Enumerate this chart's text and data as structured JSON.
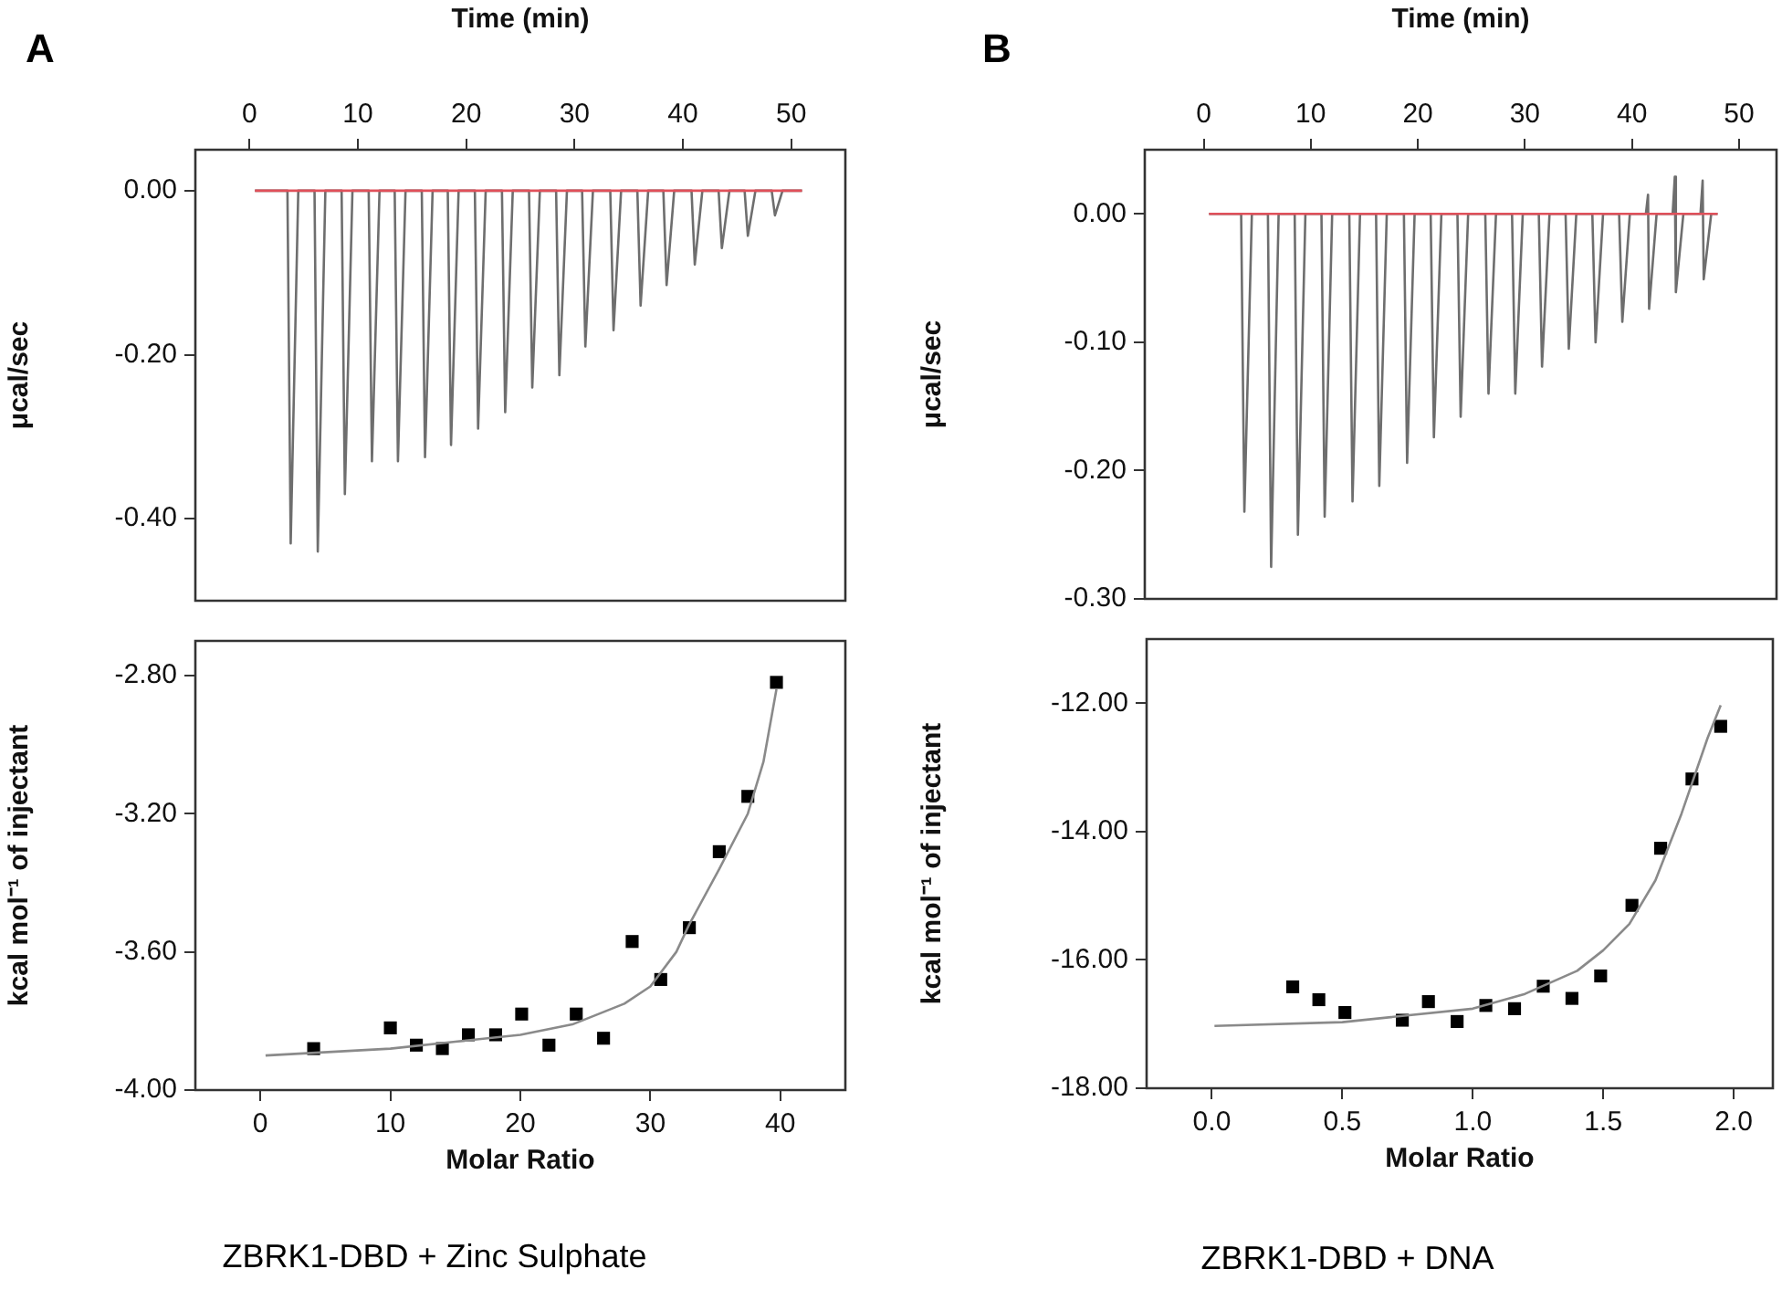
{
  "chart_data": [
    {
      "type": "line",
      "title": "A",
      "xlabel": "Time (min)",
      "ylabel": "μcal/sec",
      "xlim": [
        -5,
        55
      ],
      "xticks": [
        0,
        10,
        20,
        30,
        40,
        50
      ],
      "ylim": [
        -0.5,
        0.05
      ],
      "yticks": [
        {
          "value": 0,
          "label": "0.00"
        },
        {
          "value": -0.2,
          "label": "-0.20"
        },
        {
          "value": -0.4,
          "label": "-0.40"
        }
      ],
      "grid": false,
      "legend": false,
      "marker": "none",
      "series": [
        {
          "color": "#6e6e6e",
          "x": [
            0.5,
            3.5,
            3.8,
            4.5,
            6.0,
            6.3,
            7.0,
            8.5,
            8.8,
            9.5,
            11.0,
            11.3,
            12.0,
            13.4,
            13.7,
            14.4,
            15.9,
            16.2,
            16.9,
            18.3,
            18.6,
            19.3,
            20.8,
            21.1,
            21.8,
            23.3,
            23.6,
            24.3,
            25.8,
            26.1,
            26.8,
            28.3,
            28.6,
            29.3,
            30.7,
            31.0,
            31.7,
            33.3,
            33.6,
            34.3,
            35.8,
            36.1,
            36.8,
            38.2,
            38.5,
            39.2,
            40.8,
            41.1,
            41.8,
            43.3,
            43.6,
            44.3,
            45.7,
            46.0,
            46.7,
            48.2,
            48.5,
            49.2,
            51
          ],
          "values": [
            0,
            0,
            -0.43,
            0,
            0,
            -0.44,
            0,
            0,
            -0.37,
            0,
            0,
            -0.33,
            0,
            0,
            -0.33,
            0,
            0,
            -0.325,
            0,
            0,
            -0.31,
            0,
            0,
            -0.29,
            0,
            0,
            -0.27,
            0,
            0,
            -0.24,
            0,
            0,
            -0.225,
            0,
            0,
            -0.19,
            0,
            0,
            -0.17,
            0,
            0,
            -0.14,
            0,
            0,
            -0.115,
            0,
            0,
            -0.09,
            0,
            0,
            -0.07,
            0,
            0,
            -0.055,
            0,
            0,
            -0.03,
            0,
            0
          ]
        },
        {
          "color": "#e0505a",
          "x": [
            0.5,
            51
          ],
          "values": [
            0,
            0
          ]
        }
      ]
    },
    {
      "type": "scatter",
      "xlabel": "Molar Ratio",
      "ylabel": "kcal mol⁻¹ of injectant",
      "xlim": [
        -5,
        45
      ],
      "xticks": [
        0,
        10,
        20,
        30,
        40
      ],
      "ylim": [
        -4.0,
        -2.7
      ],
      "yticks": [
        {
          "value": -2.8,
          "label": "-2.80"
        },
        {
          "value": -3.2,
          "label": "-3.20"
        },
        {
          "value": -3.6,
          "label": "-3.60"
        },
        {
          "value": -4.0,
          "label": "-4.00"
        }
      ],
      "grid": false,
      "legend": false,
      "marker": "square",
      "annotations": [
        "ZBRK1-DBD + Zinc Sulphate"
      ],
      "series": [
        {
          "color": "#000000",
          "x": [
            4.1,
            10.0,
            12.0,
            14.0,
            16.0,
            18.1,
            20.1,
            22.2,
            24.3,
            26.4,
            28.6,
            30.8,
            33.0,
            35.3,
            37.5,
            39.7
          ],
          "values": [
            -3.88,
            -3.82,
            -3.87,
            -3.88,
            -3.84,
            -3.84,
            -3.78,
            -3.87,
            -3.78,
            -3.85,
            -3.57,
            -3.68,
            -3.53,
            -3.31,
            -3.15,
            -2.82
          ]
        },
        {
          "type": "line",
          "marker": "none",
          "color": "#8a8a8a",
          "x": [
            0.4,
            10,
            15,
            20,
            24,
            28,
            30,
            32,
            33,
            35.3,
            37.5,
            38.7,
            39.7
          ],
          "values": [
            -3.9,
            -3.88,
            -3.86,
            -3.84,
            -3.81,
            -3.75,
            -3.7,
            -3.6,
            -3.52,
            -3.36,
            -3.2,
            -3.05,
            -2.84
          ]
        }
      ]
    },
    {
      "type": "line",
      "title": "B",
      "xlabel": "Time (min)",
      "ylabel": "μcal/sec",
      "xlim": [
        -5.5,
        53.5
      ],
      "xticks": [
        0,
        10,
        20,
        30,
        40,
        50
      ],
      "ylim": [
        -0.3,
        0.05
      ],
      "yticks": [
        {
          "value": 0,
          "label": "0.00"
        },
        {
          "value": -0.1,
          "label": "-0.10"
        },
        {
          "value": -0.2,
          "label": "-0.20"
        },
        {
          "value": -0.3,
          "label": "-0.30"
        }
      ],
      "grid": false,
      "legend": false,
      "marker": "none",
      "series": [
        {
          "color": "#6e6e6e",
          "x": [
            0.5,
            3.5,
            3.8,
            4.5,
            6.0,
            6.3,
            7.0,
            8.5,
            8.8,
            9.5,
            11.0,
            11.3,
            12.0,
            13.6,
            13.9,
            14.6,
            16.1,
            16.4,
            17.1,
            18.7,
            19.0,
            19.7,
            21.2,
            21.5,
            22.2,
            23.7,
            24.0,
            24.7,
            26.3,
            26.6,
            27.3,
            28.8,
            29.1,
            29.8,
            31.3,
            31.6,
            32.3,
            33.8,
            34.1,
            34.8,
            36.3,
            36.6,
            37.3,
            38.8,
            39.1,
            39.8,
            41.3,
            41.5,
            41.6,
            42.3,
            43.8,
            44.0,
            44.1,
            44.8,
            46.4,
            46.6,
            46.7,
            47.4,
            48
          ],
          "values": [
            0,
            0,
            -0.232,
            0,
            0,
            -0.275,
            0,
            0,
            -0.25,
            0,
            0,
            -0.236,
            0,
            0,
            -0.224,
            0,
            0,
            -0.212,
            0,
            0,
            -0.194,
            0,
            0,
            -0.174,
            0,
            0,
            -0.158,
            0,
            0,
            -0.14,
            0,
            0,
            -0.14,
            0,
            0,
            -0.119,
            0,
            0,
            -0.105,
            0,
            0,
            -0.1,
            0,
            0,
            -0.084,
            0,
            0,
            0.015,
            -0.074,
            0,
            0,
            0.029,
            -0.061,
            0,
            0,
            0.026,
            -0.051,
            0,
            0
          ]
        },
        {
          "color": "#e0505a",
          "x": [
            0.5,
            48
          ],
          "values": [
            0,
            0
          ]
        }
      ]
    },
    {
      "type": "scatter",
      "xlabel": "Molar Ratio",
      "ylabel": "kcal mol⁻¹ of injectant",
      "xlim": [
        -0.25,
        2.15
      ],
      "xticks": [
        {
          "value": 0,
          "label": "0.0"
        },
        {
          "value": 0.5,
          "label": "0.5"
        },
        {
          "value": 1,
          "label": "1.0"
        },
        {
          "value": 1.5,
          "label": "1.5"
        },
        {
          "value": 2,
          "label": "2.0"
        }
      ],
      "ylim": [
        -18,
        -11
      ],
      "yticks": [
        {
          "value": -12,
          "label": "-12.00"
        },
        {
          "value": -14,
          "label": "-14.00"
        },
        {
          "value": -16,
          "label": "-16.00"
        },
        {
          "value": -18,
          "label": "-18.00"
        }
      ],
      "grid": false,
      "legend": false,
      "marker": "square",
      "annotations": [
        "ZBRK1-DBD + DNA"
      ],
      "series": [
        {
          "color": "#000000",
          "x": [
            0.31,
            0.41,
            0.51,
            0.73,
            0.83,
            0.94,
            1.05,
            1.16,
            1.27,
            1.38,
            1.49,
            1.61,
            1.72,
            1.84,
            1.95
          ],
          "values": [
            -16.42,
            -16.62,
            -16.82,
            -16.94,
            -16.65,
            -16.96,
            -16.71,
            -16.76,
            -16.41,
            -16.6,
            -16.25,
            -15.15,
            -14.26,
            -13.18,
            -12.36
          ]
        },
        {
          "type": "line",
          "marker": "none",
          "color": "#8a8a8a",
          "x": [
            0.01,
            0.5,
            1.0,
            1.2,
            1.4,
            1.5,
            1.6,
            1.7,
            1.8,
            1.9,
            1.95
          ],
          "values": [
            -17.03,
            -16.97,
            -16.76,
            -16.53,
            -16.17,
            -15.85,
            -15.44,
            -14.76,
            -13.72,
            -12.54,
            -12.03
          ]
        }
      ]
    }
  ]
}
